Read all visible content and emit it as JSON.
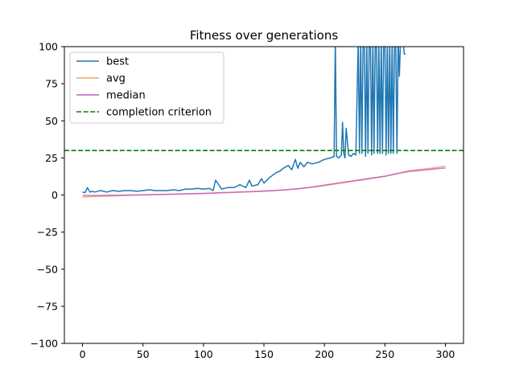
{
  "chart_data": {
    "type": "line",
    "title": "Fitness over generations",
    "xlabel": "",
    "ylabel": "",
    "xlim": [
      -15,
      315
    ],
    "ylim": [
      -100,
      100
    ],
    "xticks": [
      0,
      50,
      100,
      150,
      200,
      250,
      300
    ],
    "yticks": [
      -100,
      -75,
      -50,
      -25,
      0,
      25,
      50,
      75,
      100
    ],
    "grid": false,
    "legend_position": "top-left",
    "series": [
      {
        "name": "best",
        "color": "#1f77b4",
        "style": "solid",
        "x": [
          0,
          2,
          4,
          6,
          8,
          10,
          15,
          20,
          25,
          30,
          35,
          40,
          45,
          50,
          55,
          60,
          65,
          70,
          75,
          80,
          85,
          90,
          95,
          100,
          105,
          108,
          110,
          115,
          120,
          125,
          128,
          130,
          135,
          138,
          140,
          145,
          148,
          150,
          155,
          160,
          163,
          166,
          170,
          173,
          176,
          178,
          180,
          183,
          186,
          190,
          195,
          200,
          205,
          208,
          209,
          210,
          212,
          214,
          215,
          216,
          217,
          218,
          220,
          222,
          224,
          226,
          228,
          229,
          230,
          231,
          232,
          233,
          234,
          235,
          236,
          237,
          238,
          239,
          240,
          241,
          242,
          243,
          244,
          245,
          246,
          247,
          248,
          249,
          250,
          251,
          252,
          253,
          254,
          255,
          256,
          257,
          258,
          259,
          260,
          261,
          262,
          263,
          264,
          265,
          266,
          267
        ],
        "y": [
          2,
          1.5,
          5,
          2,
          2.5,
          2,
          3,
          2,
          3,
          2.5,
          3,
          3,
          2.5,
          3,
          3.5,
          3,
          3,
          3,
          3.5,
          3,
          4,
          4,
          4.5,
          4,
          4.5,
          3,
          10,
          4,
          5,
          5,
          6,
          7,
          5,
          10,
          6,
          7,
          11,
          8,
          12,
          15,
          16,
          18,
          20,
          17,
          24,
          18,
          22,
          19,
          22,
          21,
          22,
          24,
          25,
          26,
          105,
          26,
          25,
          27,
          49,
          28,
          25,
          45,
          27,
          26,
          28,
          27,
          105,
          28,
          105,
          28,
          105,
          105,
          26,
          105,
          28,
          105,
          105,
          27,
          105,
          28,
          105,
          105,
          28,
          105,
          28,
          105,
          28,
          105,
          105,
          27,
          105,
          28,
          105,
          28,
          105,
          28,
          105,
          105,
          28,
          105,
          80,
          105,
          105,
          105,
          95,
          95
        ]
      },
      {
        "name": "avg",
        "color": "#f4a46a",
        "style": "solid",
        "x": [
          0,
          10,
          20,
          30,
          40,
          50,
          60,
          70,
          80,
          90,
          100,
          110,
          120,
          130,
          140,
          150,
          160,
          170,
          180,
          190,
          200,
          210,
          220,
          230,
          240,
          250,
          260,
          270,
          280,
          290,
          300
        ],
        "y": [
          -1.5,
          -1,
          -0.8,
          -0.5,
          -0.2,
          0,
          0.2,
          0.4,
          0.6,
          0.8,
          1,
          1.3,
          1.6,
          1.9,
          2.2,
          2.5,
          3,
          3.6,
          4.3,
          5.2,
          6.3,
          7.6,
          8.8,
          10,
          11.3,
          12.5,
          14.2,
          16.5,
          17.3,
          18.2,
          19.5
        ]
      },
      {
        "name": "median",
        "color": "#c45ec4",
        "style": "solid",
        "x": [
          0,
          10,
          20,
          30,
          40,
          50,
          60,
          70,
          80,
          90,
          100,
          110,
          120,
          130,
          140,
          150,
          160,
          170,
          180,
          190,
          200,
          210,
          220,
          230,
          240,
          250,
          260,
          270,
          280,
          290,
          300
        ],
        "y": [
          -0.3,
          -0.3,
          -0.2,
          -0.1,
          0,
          0.1,
          0.3,
          0.5,
          0.7,
          0.9,
          1.1,
          1.4,
          1.7,
          2,
          2.3,
          2.7,
          3.1,
          3.7,
          4.4,
          5.4,
          6.6,
          7.9,
          9.1,
          10.3,
          11.5,
          12.7,
          14.5,
          15.8,
          16.6,
          17.5,
          18.2
        ]
      },
      {
        "name": "completion criterion",
        "color": "#008000",
        "style": "dashed",
        "x": [
          -15,
          315
        ],
        "y": [
          30,
          30
        ]
      }
    ]
  }
}
